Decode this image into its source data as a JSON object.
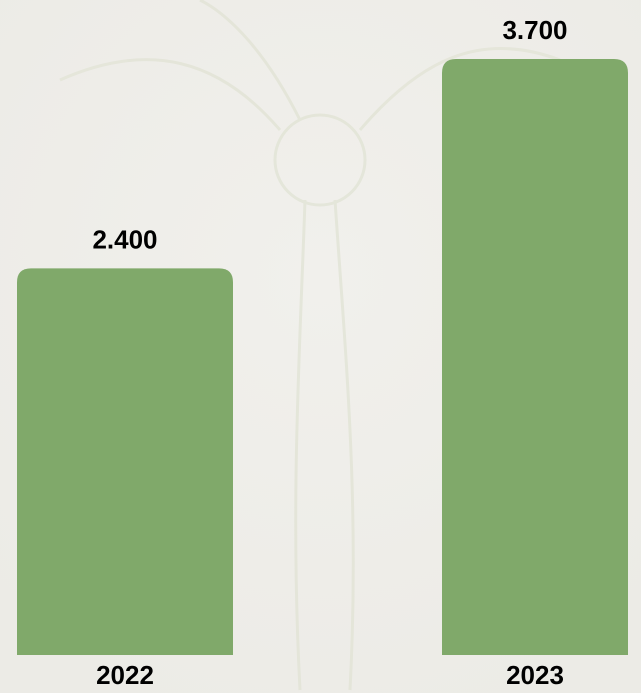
{
  "chart_data": {
    "type": "bar",
    "categories": [
      "2022",
      "2023"
    ],
    "values": [
      2400,
      3700
    ],
    "value_labels": [
      "2.400",
      "3.700"
    ],
    "color": "#80a96a"
  }
}
